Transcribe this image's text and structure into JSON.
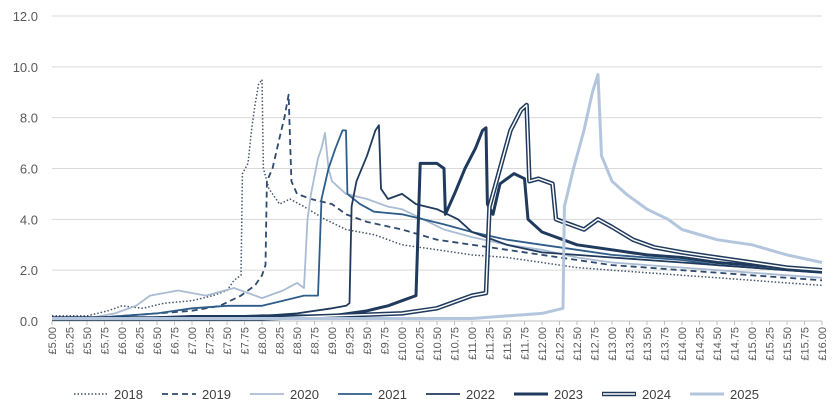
{
  "chart_data": {
    "type": "line",
    "title": "",
    "xlabel": "",
    "ylabel": "",
    "xlim": [
      5.0,
      16.0
    ],
    "ylim": [
      0,
      12
    ],
    "y_ticks": [
      "0.0",
      "2.0",
      "4.0",
      "6.0",
      "8.0",
      "10.0",
      "12.0"
    ],
    "x_ticks": [
      "£5.00",
      "£5.25",
      "£5.50",
      "£5.75",
      "£6.00",
      "£6.25",
      "£6.50",
      "£6.75",
      "£7.00",
      "£7.25",
      "£7.50",
      "£7.75",
      "£8.00",
      "£8.25",
      "£8.50",
      "£8.75",
      "£9.00",
      "£9.25",
      "£9.50",
      "£9.75",
      "£10.00",
      "£10.25",
      "£10.50",
      "£10.75",
      "£11.00",
      "£11.25",
      "£11.50",
      "£11.75",
      "£12.00",
      "£12.25",
      "£12.50",
      "£12.75",
      "£13.00",
      "£13.25",
      "£13.50",
      "£13.75",
      "£14.00",
      "£14.25",
      "£14.50",
      "£14.75",
      "£15.00",
      "£15.25",
      "£15.50",
      "£15.75",
      "£16.00"
    ],
    "grid": true,
    "legend_position": "bottom",
    "series": [
      {
        "name": "2018",
        "style": "dotted",
        "color": "#44546a",
        "points": [
          [
            5.0,
            0.2
          ],
          [
            5.5,
            0.2
          ],
          [
            5.8,
            0.4
          ],
          [
            6.0,
            0.6
          ],
          [
            6.3,
            0.5
          ],
          [
            6.6,
            0.7
          ],
          [
            7.0,
            0.8
          ],
          [
            7.3,
            1.0
          ],
          [
            7.5,
            1.2
          ],
          [
            7.6,
            1.6
          ],
          [
            7.7,
            1.8
          ],
          [
            7.72,
            5.8
          ],
          [
            7.8,
            6.2
          ],
          [
            7.85,
            7.5
          ],
          [
            7.9,
            8.5
          ],
          [
            7.95,
            9.3
          ],
          [
            8.0,
            9.5
          ],
          [
            8.02,
            6.0
          ],
          [
            8.1,
            5.2
          ],
          [
            8.25,
            4.6
          ],
          [
            8.4,
            4.8
          ],
          [
            8.6,
            4.5
          ],
          [
            8.9,
            4.0
          ],
          [
            9.2,
            3.6
          ],
          [
            9.6,
            3.4
          ],
          [
            10.0,
            3.0
          ],
          [
            10.5,
            2.8
          ],
          [
            11.0,
            2.6
          ],
          [
            11.5,
            2.5
          ],
          [
            12.0,
            2.3
          ],
          [
            12.5,
            2.1
          ],
          [
            13.0,
            2.0
          ],
          [
            13.5,
            1.9
          ],
          [
            14.0,
            1.8
          ],
          [
            14.5,
            1.7
          ],
          [
            15.0,
            1.6
          ],
          [
            15.5,
            1.5
          ],
          [
            16.0,
            1.4
          ]
        ]
      },
      {
        "name": "2019",
        "style": "dashed",
        "color": "#2e4a6e",
        "points": [
          [
            5.0,
            0.1
          ],
          [
            5.5,
            0.1
          ],
          [
            6.0,
            0.2
          ],
          [
            6.5,
            0.3
          ],
          [
            7.0,
            0.4
          ],
          [
            7.4,
            0.6
          ],
          [
            7.7,
            1.0
          ],
          [
            7.9,
            1.4
          ],
          [
            8.0,
            1.8
          ],
          [
            8.05,
            2.2
          ],
          [
            8.07,
            5.5
          ],
          [
            8.15,
            6.0
          ],
          [
            8.25,
            7.2
          ],
          [
            8.32,
            8.0
          ],
          [
            8.38,
            8.9
          ],
          [
            8.42,
            5.5
          ],
          [
            8.5,
            5.0
          ],
          [
            8.7,
            4.8
          ],
          [
            9.0,
            4.6
          ],
          [
            9.2,
            4.2
          ],
          [
            9.5,
            3.9
          ],
          [
            10.0,
            3.6
          ],
          [
            10.5,
            3.2
          ],
          [
            11.0,
            3.0
          ],
          [
            11.5,
            2.8
          ],
          [
            12.0,
            2.6
          ],
          [
            12.5,
            2.4
          ],
          [
            13.0,
            2.2
          ],
          [
            13.5,
            2.1
          ],
          [
            14.0,
            2.0
          ],
          [
            14.5,
            1.9
          ],
          [
            15.0,
            1.8
          ],
          [
            15.5,
            1.7
          ],
          [
            16.0,
            1.6
          ]
        ]
      },
      {
        "name": "2020",
        "style": "solid",
        "color": "#a9bcd4",
        "points": [
          [
            5.0,
            0.1
          ],
          [
            5.5,
            0.1
          ],
          [
            5.9,
            0.3
          ],
          [
            6.2,
            0.6
          ],
          [
            6.4,
            1.0
          ],
          [
            6.8,
            1.2
          ],
          [
            7.2,
            1.0
          ],
          [
            7.6,
            1.3
          ],
          [
            8.0,
            0.9
          ],
          [
            8.3,
            1.2
          ],
          [
            8.5,
            1.5
          ],
          [
            8.6,
            1.3
          ],
          [
            8.65,
            4.0
          ],
          [
            8.7,
            5.0
          ],
          [
            8.8,
            6.4
          ],
          [
            8.85,
            6.8
          ],
          [
            8.9,
            7.4
          ],
          [
            8.95,
            6.0
          ],
          [
            9.0,
            5.5
          ],
          [
            9.2,
            5.0
          ],
          [
            9.5,
            4.8
          ],
          [
            9.8,
            4.5
          ],
          [
            10.0,
            4.4
          ],
          [
            10.3,
            4.0
          ],
          [
            10.6,
            3.6
          ],
          [
            11.0,
            3.3
          ],
          [
            11.5,
            3.0
          ],
          [
            12.0,
            2.8
          ],
          [
            12.5,
            2.5
          ],
          [
            13.0,
            2.3
          ],
          [
            13.5,
            2.2
          ],
          [
            14.0,
            2.1
          ],
          [
            14.5,
            2.0
          ],
          [
            15.0,
            1.9
          ],
          [
            15.5,
            1.8
          ],
          [
            16.0,
            1.7
          ]
        ]
      },
      {
        "name": "2021",
        "style": "solid",
        "color": "#2e5d8a",
        "points": [
          [
            5.0,
            0.1
          ],
          [
            5.5,
            0.1
          ],
          [
            6.0,
            0.2
          ],
          [
            6.5,
            0.3
          ],
          [
            7.0,
            0.5
          ],
          [
            7.5,
            0.6
          ],
          [
            8.0,
            0.6
          ],
          [
            8.3,
            0.8
          ],
          [
            8.6,
            1.0
          ],
          [
            8.8,
            1.0
          ],
          [
            8.85,
            4.8
          ],
          [
            8.95,
            6.0
          ],
          [
            9.05,
            6.8
          ],
          [
            9.15,
            7.5
          ],
          [
            9.2,
            7.5
          ],
          [
            9.22,
            5.0
          ],
          [
            9.4,
            4.6
          ],
          [
            9.6,
            4.3
          ],
          [
            10.0,
            4.2
          ],
          [
            10.3,
            4.0
          ],
          [
            10.6,
            3.8
          ],
          [
            11.0,
            3.5
          ],
          [
            11.5,
            3.2
          ],
          [
            12.0,
            3.0
          ],
          [
            12.5,
            2.8
          ],
          [
            13.0,
            2.6
          ],
          [
            13.5,
            2.5
          ],
          [
            14.0,
            2.4
          ],
          [
            14.5,
            2.2
          ],
          [
            15.0,
            2.1
          ],
          [
            15.5,
            2.0
          ],
          [
            16.0,
            1.9
          ]
        ]
      },
      {
        "name": "2022",
        "style": "solid",
        "color": "#1f3a5c",
        "points": [
          [
            5.0,
            0.1
          ],
          [
            6.0,
            0.1
          ],
          [
            7.0,
            0.2
          ],
          [
            8.0,
            0.2
          ],
          [
            8.5,
            0.3
          ],
          [
            9.0,
            0.5
          ],
          [
            9.2,
            0.6
          ],
          [
            9.25,
            0.7
          ],
          [
            9.28,
            4.5
          ],
          [
            9.35,
            5.5
          ],
          [
            9.5,
            6.5
          ],
          [
            9.62,
            7.5
          ],
          [
            9.67,
            7.7
          ],
          [
            9.7,
            5.2
          ],
          [
            9.8,
            4.8
          ],
          [
            10.0,
            5.0
          ],
          [
            10.2,
            4.6
          ],
          [
            10.5,
            4.4
          ],
          [
            10.8,
            4.0
          ],
          [
            11.0,
            3.5
          ],
          [
            11.5,
            3.0
          ],
          [
            12.0,
            2.7
          ],
          [
            12.5,
            2.6
          ],
          [
            13.0,
            2.5
          ],
          [
            13.5,
            2.4
          ],
          [
            14.0,
            2.3
          ],
          [
            14.5,
            2.2
          ],
          [
            15.0,
            2.1
          ],
          [
            15.5,
            2.0
          ],
          [
            16.0,
            1.9
          ]
        ]
      },
      {
        "name": "2023",
        "style": "solid-thick",
        "color": "#1f3a5c",
        "points": [
          [
            5.0,
            0.1
          ],
          [
            6.0,
            0.1
          ],
          [
            7.0,
            0.1
          ],
          [
            8.0,
            0.2
          ],
          [
            9.0,
            0.2
          ],
          [
            9.5,
            0.4
          ],
          [
            9.8,
            0.6
          ],
          [
            10.0,
            0.8
          ],
          [
            10.2,
            1.0
          ],
          [
            10.26,
            6.2
          ],
          [
            10.5,
            6.2
          ],
          [
            10.6,
            6.0
          ],
          [
            10.62,
            4.2
          ],
          [
            10.75,
            5.0
          ],
          [
            10.9,
            6.0
          ],
          [
            11.05,
            6.8
          ],
          [
            11.15,
            7.5
          ],
          [
            11.2,
            7.6
          ],
          [
            11.22,
            4.6
          ],
          [
            11.3,
            4.2
          ],
          [
            11.4,
            5.4
          ],
          [
            11.6,
            5.8
          ],
          [
            11.75,
            5.6
          ],
          [
            11.8,
            4.0
          ],
          [
            12.0,
            3.5
          ],
          [
            12.3,
            3.2
          ],
          [
            12.5,
            3.0
          ],
          [
            13.0,
            2.8
          ],
          [
            13.5,
            2.6
          ],
          [
            14.0,
            2.5
          ],
          [
            14.5,
            2.3
          ],
          [
            15.0,
            2.2
          ],
          [
            15.5,
            2.1
          ],
          [
            16.0,
            2.0
          ]
        ]
      },
      {
        "name": "2024",
        "style": "double",
        "color": "#1f3a5c",
        "points": [
          [
            5.0,
            0.1
          ],
          [
            6.0,
            0.1
          ],
          [
            7.0,
            0.1
          ],
          [
            8.0,
            0.1
          ],
          [
            9.0,
            0.2
          ],
          [
            10.0,
            0.3
          ],
          [
            10.5,
            0.5
          ],
          [
            11.0,
            1.0
          ],
          [
            11.2,
            1.1
          ],
          [
            11.25,
            4.5
          ],
          [
            11.4,
            6.0
          ],
          [
            11.55,
            7.5
          ],
          [
            11.7,
            8.3
          ],
          [
            11.78,
            8.5
          ],
          [
            11.82,
            5.5
          ],
          [
            11.95,
            5.6
          ],
          [
            12.15,
            5.4
          ],
          [
            12.2,
            4.0
          ],
          [
            12.4,
            3.8
          ],
          [
            12.6,
            3.6
          ],
          [
            12.8,
            4.0
          ],
          [
            13.0,
            3.7
          ],
          [
            13.3,
            3.2
          ],
          [
            13.6,
            2.9
          ],
          [
            14.0,
            2.7
          ],
          [
            14.5,
            2.5
          ],
          [
            15.0,
            2.3
          ],
          [
            15.5,
            2.1
          ],
          [
            16.0,
            2.0
          ]
        ]
      },
      {
        "name": "2025",
        "style": "solid-thick",
        "color": "#b4c6dd",
        "points": [
          [
            5.0,
            0.1
          ],
          [
            6.0,
            0.1
          ],
          [
            7.0,
            0.1
          ],
          [
            8.0,
            0.1
          ],
          [
            9.0,
            0.1
          ],
          [
            10.0,
            0.1
          ],
          [
            11.0,
            0.1
          ],
          [
            11.5,
            0.2
          ],
          [
            12.0,
            0.3
          ],
          [
            12.3,
            0.5
          ],
          [
            12.32,
            4.5
          ],
          [
            12.45,
            6.0
          ],
          [
            12.6,
            7.5
          ],
          [
            12.72,
            9.0
          ],
          [
            12.8,
            9.7
          ],
          [
            12.85,
            6.5
          ],
          [
            13.0,
            5.5
          ],
          [
            13.2,
            5.0
          ],
          [
            13.5,
            4.4
          ],
          [
            13.8,
            4.0
          ],
          [
            14.0,
            3.6
          ],
          [
            14.5,
            3.2
          ],
          [
            15.0,
            3.0
          ],
          [
            15.5,
            2.6
          ],
          [
            16.0,
            2.3
          ]
        ]
      }
    ]
  }
}
